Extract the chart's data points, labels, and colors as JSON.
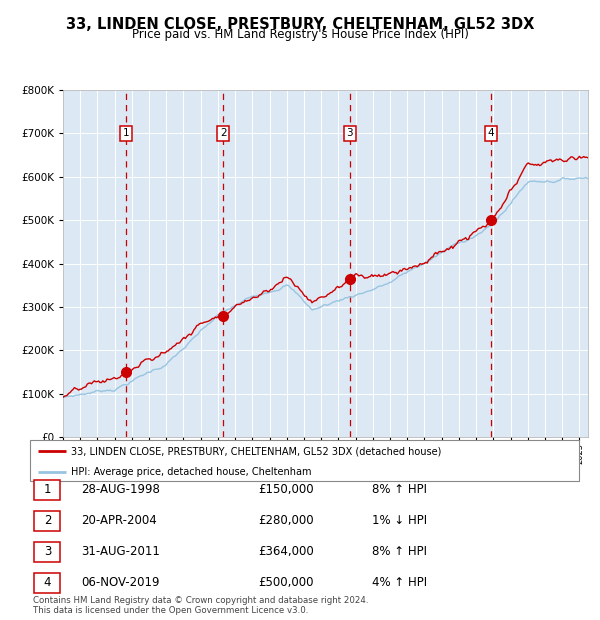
{
  "title": "33, LINDEN CLOSE, PRESTBURY, CHELTENHAM, GL52 3DX",
  "subtitle": "Price paid vs. HM Land Registry's House Price Index (HPI)",
  "legend_red": "33, LINDEN CLOSE, PRESTBURY, CHELTENHAM, GL52 3DX (detached house)",
  "legend_blue": "HPI: Average price, detached house, Cheltenham",
  "footer": "Contains HM Land Registry data © Crown copyright and database right 2024.\nThis data is licensed under the Open Government Licence v3.0.",
  "sales": [
    {
      "num": 1,
      "date": "28-AUG-1998",
      "price": 150000,
      "pct": "8%",
      "dir": "↑",
      "year_x": 1998.65
    },
    {
      "num": 2,
      "date": "20-APR-2004",
      "price": 280000,
      "pct": "1%",
      "dir": "↓",
      "year_x": 2004.3
    },
    {
      "num": 3,
      "date": "31-AUG-2011",
      "price": 364000,
      "pct": "8%",
      "dir": "↑",
      "year_x": 2011.66
    },
    {
      "num": 4,
      "date": "06-NOV-2019",
      "price": 500000,
      "pct": "4%",
      "dir": "↑",
      "year_x": 2019.85
    }
  ],
  "ylim": [
    0,
    800000
  ],
  "xlim_start": 1995.0,
  "xlim_end": 2025.5,
  "plot_bg": "#dce9f5",
  "grid_color": "#ffffff",
  "red_line_color": "#cc0000",
  "blue_line_color": "#99c4e0",
  "marker_color": "#cc0000",
  "vline_color": "#cc0000",
  "box_color": "#cc0000"
}
